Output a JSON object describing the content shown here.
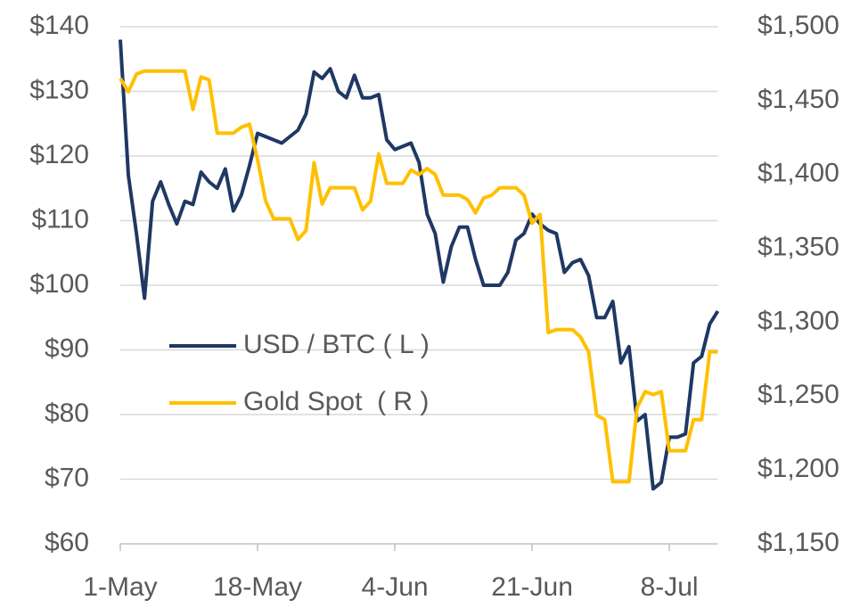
{
  "chart_data": {
    "type": "line",
    "categories": [
      "1-May",
      null,
      null,
      null,
      null,
      null,
      null,
      null,
      null,
      null,
      null,
      null,
      null,
      null,
      null,
      null,
      null,
      "18-May",
      null,
      null,
      null,
      null,
      null,
      null,
      null,
      null,
      null,
      null,
      null,
      null,
      null,
      null,
      null,
      null,
      "4-Jun",
      null,
      null,
      null,
      null,
      null,
      null,
      null,
      null,
      null,
      null,
      null,
      null,
      null,
      null,
      null,
      null,
      "21-Jun",
      null,
      null,
      null,
      null,
      null,
      null,
      null,
      null,
      null,
      null,
      null,
      null,
      null,
      null,
      null,
      null,
      "8-Jul",
      null,
      null,
      null,
      null,
      null,
      null
    ],
    "series": [
      {
        "name": "USD / BTC ( L )",
        "color": "#1f3864",
        "axis": "y",
        "values": [
          138,
          117,
          108,
          98,
          113,
          116,
          112.5,
          109.5,
          113,
          112.5,
          117.5,
          116,
          115,
          118,
          111.5,
          114,
          118.5,
          123.5,
          123,
          122.5,
          122,
          123,
          124,
          126.5,
          133,
          132,
          133.5,
          130,
          129,
          132.5,
          129,
          129,
          129.5,
          122.5,
          121,
          121.5,
          122,
          119,
          111,
          108,
          100.5,
          106,
          109,
          109,
          104,
          100,
          100,
          100,
          102,
          107,
          108,
          111,
          109.5,
          108.5,
          108,
          102,
          103.5,
          104,
          101.5,
          95,
          95,
          97.5,
          88,
          90.5,
          79,
          80,
          68.5,
          69.5,
          76.5,
          76.5,
          77,
          88,
          89,
          94,
          96
        ]
      },
      {
        "name": "Gold Spot  ( R )",
        "color": "#ffc000",
        "axis": "y2",
        "values": [
          1465,
          1456,
          1468,
          1470,
          1470,
          1470,
          1470,
          1470,
          1470,
          1444,
          1466,
          1464,
          1428,
          1428,
          1428,
          1432,
          1434,
          1410,
          1382,
          1370,
          1370,
          1370,
          1356,
          1362,
          1408,
          1380,
          1391,
          1391,
          1391,
          1391,
          1376,
          1382,
          1414,
          1394,
          1394,
          1394,
          1403,
          1400,
          1404,
          1400,
          1386,
          1386,
          1386,
          1383,
          1374,
          1384,
          1386,
          1391,
          1391,
          1391,
          1386,
          1367,
          1373,
          1293,
          1295,
          1295,
          1295,
          1290,
          1280,
          1237,
          1234,
          1192,
          1192,
          1192,
          1242,
          1253,
          1251,
          1253,
          1213,
          1213,
          1213,
          1234,
          1234,
          1280,
          1280
        ]
      }
    ],
    "ylim": [
      60,
      140
    ],
    "yticks": [
      {
        "value": 60,
        "label": "$60"
      },
      {
        "value": 70,
        "label": "$70"
      },
      {
        "value": 80,
        "label": "$80"
      },
      {
        "value": 90,
        "label": "$90"
      },
      {
        "value": 100,
        "label": "$100"
      },
      {
        "value": 110,
        "label": "$110"
      },
      {
        "value": 120,
        "label": "$120"
      },
      {
        "value": 130,
        "label": "$130"
      },
      {
        "value": 140,
        "label": "$140"
      }
    ],
    "y2lim": [
      1150,
      1500
    ],
    "y2ticks": [
      {
        "value": 1150,
        "label": "$1,150"
      },
      {
        "value": 1200,
        "label": "$1,200"
      },
      {
        "value": 1250,
        "label": "$1,250"
      },
      {
        "value": 1300,
        "label": "$1,300"
      },
      {
        "value": 1350,
        "label": "$1,350"
      },
      {
        "value": 1400,
        "label": "$1,400"
      },
      {
        "value": 1450,
        "label": "$1,450"
      },
      {
        "value": 1500,
        "label": "$1,500"
      }
    ],
    "grid": true
  }
}
